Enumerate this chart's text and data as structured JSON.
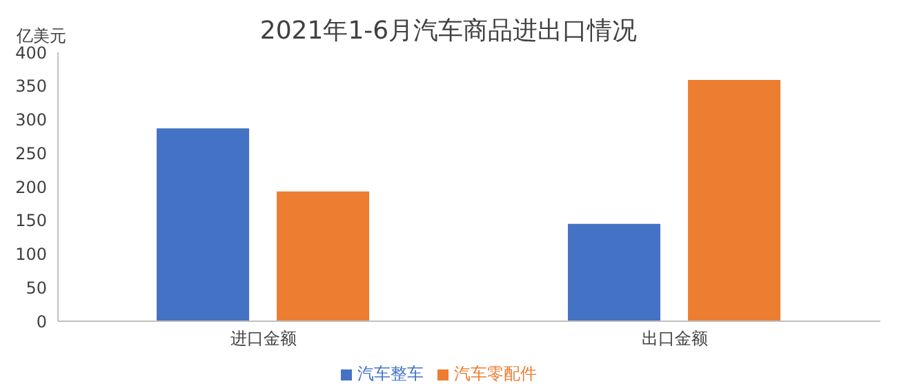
{
  "chart_data": {
    "type": "bar",
    "title": "2021年1-6月汽车商品进出口情况",
    "ylabel": "亿美元",
    "categories": [
      "进口金额",
      "出口金额"
    ],
    "series": [
      {
        "name": "汽车整车",
        "color": "#4472c4",
        "values": [
          287,
          145
        ]
      },
      {
        "name": "汽车零配件",
        "color": "#ed7d31",
        "values": [
          193,
          359
        ]
      }
    ],
    "ylim": [
      0,
      400
    ],
    "yticks": [
      0,
      50,
      100,
      150,
      200,
      250,
      300,
      350,
      400
    ],
    "grid": false,
    "legend": "bottom"
  }
}
